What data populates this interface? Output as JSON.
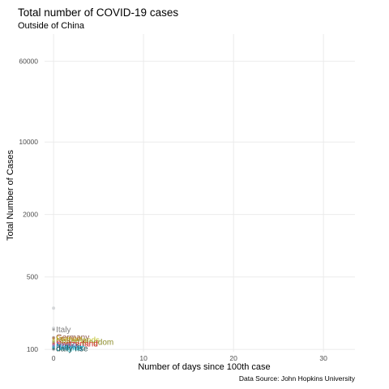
{
  "chart_data": {
    "type": "scatter",
    "title": "Total number of COVID-19 cases",
    "subtitle": "Outside of China",
    "xlabel": "Number of days since 100th case",
    "ylabel": "Total Number of Cases",
    "caption": "Data Source: John Hopkins University",
    "x_scale": "linear",
    "y_scale": "log",
    "xlim": [
      -1,
      33.5
    ],
    "ylim": [
      95,
      110000
    ],
    "x_ticks": [
      0,
      10,
      20,
      30
    ],
    "y_ticks": [
      100,
      500,
      2000,
      10000,
      60000
    ],
    "grid": true,
    "series": [
      {
        "name": "Italy",
        "x": 0,
        "y": 155,
        "color": "#7f7f7f"
      },
      {
        "name": "Germany",
        "x": 0,
        "y": 130,
        "color": "#8c564b"
      },
      {
        "name": "France",
        "x": 0,
        "y": 127,
        "color": "#c07f1f"
      },
      {
        "name": "Netherlands",
        "x": 0,
        "y": 122,
        "color": "#bcbd22"
      },
      {
        "name": "United Kingdom",
        "x": 0,
        "y": 117,
        "color": "#8c8c2a"
      },
      {
        "name": "Switzerland",
        "x": 0,
        "y": 113,
        "color": "#d62728"
      },
      {
        "name": "Spain",
        "x": 0,
        "y": 110,
        "color": "#9467bd"
      },
      {
        "name": "Norway",
        "x": 0,
        "y": 106,
        "color": "#1f77b4"
      },
      {
        "name": "Belgium",
        "x": 0,
        "y": 103,
        "color": "#17becf"
      },
      {
        "name": "daily rise",
        "x": 0,
        "y": 101,
        "color": "#2f4f4f"
      }
    ],
    "points": [
      {
        "x": 0,
        "y": 250
      },
      {
        "x": 0,
        "y": 160
      },
      {
        "x": 0,
        "y": 130
      },
      {
        "x": 0,
        "y": 120
      },
      {
        "x": 0,
        "y": 115
      },
      {
        "x": 0,
        "y": 110
      },
      {
        "x": 0,
        "y": 106
      },
      {
        "x": 0,
        "y": 103
      },
      {
        "x": 0,
        "y": 100
      }
    ]
  }
}
